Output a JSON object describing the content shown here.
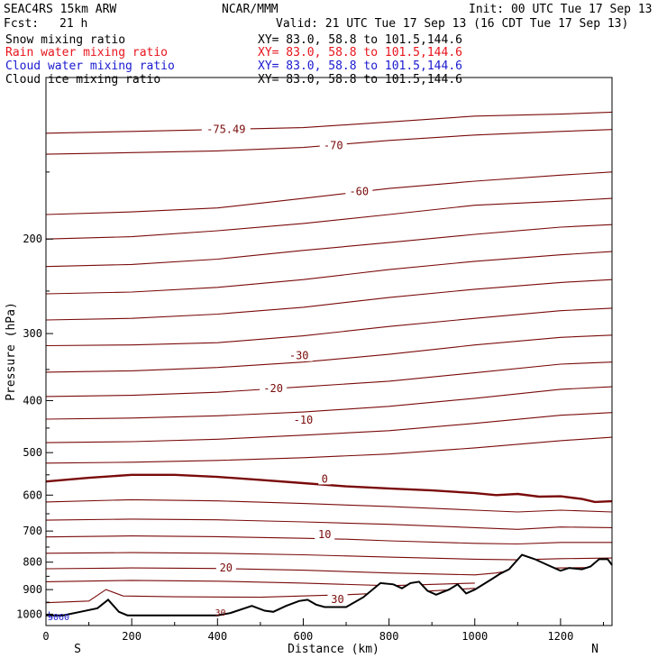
{
  "header": {
    "model": "SEAC4RS 15km ARW",
    "org": "NCAR/MMM",
    "init": "Init: 00 UTC Tue 17 Sep 13",
    "fcst_label": "Fcst:",
    "fcst_value": "21 h",
    "valid": "Valid: 21 UTC Tue 17 Sep 13 (16 CDT Tue 17 Sep 13)"
  },
  "legend": [
    {
      "label": "Snow mixing ratio",
      "xy": "XY=  83.0, 58.8 to 101.5,144.6",
      "color": "#000000"
    },
    {
      "label": "Rain water mixing ratio",
      "xy": "XY=  83.0, 58.8 to 101.5,144.6",
      "color": "#e8141c"
    },
    {
      "label": "Cloud water mixing ratio",
      "xy": "XY=  83.0, 58.8 to 101.5,144.6",
      "color": "#1a1ad0"
    },
    {
      "label": "Cloud ice mixing ratio",
      "xy": "XY=  83.0, 58.8 to 101.5,144.6",
      "color": "#000000"
    }
  ],
  "colors": {
    "temperature_contour": "#7a0a0a",
    "terrain": "#000000",
    "axes": "#000000"
  },
  "chart_data": {
    "type": "line",
    "title": "",
    "xlabel": "Distance (km)",
    "ylabel": "Pressure (hPa)",
    "xlim": [
      0,
      1320
    ],
    "ylim": [
      1050,
      100
    ],
    "y_scale": "log",
    "x_ticks": [
      0,
      200,
      400,
      600,
      800,
      1000,
      1200
    ],
    "y_ticks": [
      200,
      300,
      400,
      500,
      600,
      700,
      800,
      900,
      1000
    ],
    "x_end_labels": {
      "left": "S",
      "right": "N"
    },
    "temperature_contours": [
      {
        "level": "-75.49",
        "label_x": 420,
        "label_y": 125,
        "points": [
          [
            0,
            127
          ],
          [
            200,
            126
          ],
          [
            400,
            125
          ],
          [
            600,
            124
          ],
          [
            800,
            121
          ],
          [
            1000,
            118
          ],
          [
            1200,
            117
          ],
          [
            1320,
            116
          ]
        ]
      },
      {
        "level": "-70",
        "label_x": 670,
        "label_y": 134,
        "points": [
          [
            0,
            139
          ],
          [
            200,
            138
          ],
          [
            400,
            137
          ],
          [
            600,
            135
          ],
          [
            800,
            131
          ],
          [
            1000,
            128
          ],
          [
            1200,
            126
          ],
          [
            1320,
            125
          ]
        ]
      },
      {
        "level": "-60",
        "label_x": 730,
        "label_y": 163,
        "points": [
          [
            0,
            180
          ],
          [
            200,
            178
          ],
          [
            400,
            175
          ],
          [
            600,
            168
          ],
          [
            800,
            161
          ],
          [
            1000,
            156
          ],
          [
            1200,
            152
          ],
          [
            1320,
            150
          ]
        ]
      },
      {
        "level": "",
        "label_x": null,
        "label_y": null,
        "points": [
          [
            0,
            200
          ],
          [
            200,
            198
          ],
          [
            400,
            193
          ],
          [
            600,
            187
          ],
          [
            800,
            180
          ],
          [
            1000,
            173
          ],
          [
            1200,
            170
          ],
          [
            1320,
            168
          ]
        ]
      },
      {
        "level": "",
        "label_x": null,
        "label_y": null,
        "points": [
          [
            0,
            225
          ],
          [
            200,
            223
          ],
          [
            400,
            218
          ],
          [
            600,
            210
          ],
          [
            800,
            203
          ],
          [
            1000,
            196
          ],
          [
            1200,
            190
          ],
          [
            1320,
            188
          ]
        ]
      },
      {
        "level": "",
        "label_x": null,
        "label_y": null,
        "points": [
          [
            0,
            253
          ],
          [
            200,
            251
          ],
          [
            400,
            246
          ],
          [
            600,
            238
          ],
          [
            800,
            228
          ],
          [
            1000,
            220
          ],
          [
            1200,
            214
          ],
          [
            1320,
            211
          ]
        ]
      },
      {
        "level": "",
        "label_x": null,
        "label_y": null,
        "points": [
          [
            0,
            283
          ],
          [
            200,
            281
          ],
          [
            400,
            276
          ],
          [
            600,
            268
          ],
          [
            800,
            257
          ],
          [
            1000,
            248
          ],
          [
            1200,
            241
          ],
          [
            1320,
            238
          ]
        ]
      },
      {
        "level": "-30",
        "label_x": 590,
        "label_y": 330,
        "points": [
          [
            0,
            316
          ],
          [
            200,
            315
          ],
          [
            400,
            312
          ],
          [
            600,
            303
          ],
          [
            800,
            291
          ],
          [
            1000,
            281
          ],
          [
            1200,
            272
          ],
          [
            1320,
            269
          ]
        ]
      },
      {
        "level": "",
        "label_x": null,
        "label_y": null,
        "points": [
          [
            0,
            354
          ],
          [
            200,
            352
          ],
          [
            400,
            347
          ],
          [
            600,
            339
          ],
          [
            800,
            328
          ],
          [
            1000,
            315
          ],
          [
            1200,
            305
          ],
          [
            1320,
            302
          ]
        ]
      },
      {
        "level": "-20",
        "label_x": 530,
        "label_y": 380,
        "points": [
          [
            0,
            393
          ],
          [
            200,
            391
          ],
          [
            400,
            386
          ],
          [
            600,
            377
          ],
          [
            800,
            368
          ],
          [
            1000,
            355
          ],
          [
            1200,
            342
          ],
          [
            1320,
            339
          ]
        ]
      },
      {
        "level": "",
        "label_x": null,
        "label_y": null,
        "points": [
          [
            0,
            433
          ],
          [
            200,
            431
          ],
          [
            400,
            427
          ],
          [
            600,
            420
          ],
          [
            800,
            410
          ],
          [
            1000,
            396
          ],
          [
            1200,
            381
          ],
          [
            1320,
            377
          ]
        ]
      },
      {
        "level": "-10",
        "label_x": 600,
        "label_y": 435,
        "points": [
          [
            0,
            479
          ],
          [
            200,
            477
          ],
          [
            400,
            472
          ],
          [
            600,
            464
          ],
          [
            800,
            455
          ],
          [
            1000,
            441
          ],
          [
            1200,
            426
          ],
          [
            1320,
            421
          ]
        ]
      },
      {
        "level": "",
        "label_x": null,
        "label_y": null,
        "points": [
          [
            0,
            523
          ],
          [
            200,
            521
          ],
          [
            400,
            517
          ],
          [
            600,
            511
          ],
          [
            800,
            503
          ],
          [
            1000,
            490
          ],
          [
            1200,
            475
          ],
          [
            1320,
            468
          ]
        ]
      },
      {
        "level": "0",
        "label_x": 650,
        "label_y": 560,
        "bold": true,
        "points": [
          [
            0,
            566
          ],
          [
            100,
            557
          ],
          [
            200,
            550
          ],
          [
            300,
            550
          ],
          [
            400,
            555
          ],
          [
            500,
            562
          ],
          [
            600,
            570
          ],
          [
            700,
            578
          ],
          [
            800,
            583
          ],
          [
            900,
            588
          ],
          [
            1000,
            595
          ],
          [
            1050,
            600
          ],
          [
            1100,
            597
          ],
          [
            1150,
            604
          ],
          [
            1200,
            603
          ],
          [
            1250,
            610
          ],
          [
            1280,
            618
          ],
          [
            1320,
            616
          ]
        ]
      },
      {
        "level": "",
        "label_x": null,
        "label_y": null,
        "points": [
          [
            0,
            618
          ],
          [
            200,
            612
          ],
          [
            400,
            615
          ],
          [
            600,
            622
          ],
          [
            800,
            630
          ],
          [
            1000,
            640
          ],
          [
            1100,
            645
          ],
          [
            1200,
            640
          ],
          [
            1320,
            645
          ]
        ]
      },
      {
        "level": "",
        "label_x": null,
        "label_y": null,
        "points": [
          [
            0,
            668
          ],
          [
            200,
            665
          ],
          [
            400,
            667
          ],
          [
            600,
            673
          ],
          [
            800,
            680
          ],
          [
            1000,
            690
          ],
          [
            1100,
            695
          ],
          [
            1200,
            688
          ],
          [
            1320,
            690
          ]
        ]
      },
      {
        "level": "10",
        "label_x": 650,
        "label_y": 710,
        "points": [
          [
            0,
            718
          ],
          [
            200,
            715
          ],
          [
            400,
            717
          ],
          [
            600,
            722
          ],
          [
            700,
            725
          ],
          [
            800,
            730
          ],
          [
            1000,
            738
          ],
          [
            1100,
            740
          ],
          [
            1200,
            735
          ],
          [
            1320,
            735
          ]
        ]
      },
      {
        "level": "",
        "label_x": null,
        "label_y": null,
        "points": [
          [
            0,
            770
          ],
          [
            200,
            768
          ],
          [
            400,
            770
          ],
          [
            600,
            775
          ],
          [
            800,
            783
          ],
          [
            1000,
            790
          ],
          [
            1100,
            792
          ],
          [
            1200,
            788
          ],
          [
            1320,
            786
          ]
        ]
      },
      {
        "level": "20",
        "label_x": 420,
        "label_y": 820,
        "points": [
          [
            0,
            823
          ],
          [
            200,
            820
          ],
          [
            400,
            822
          ],
          [
            600,
            828
          ],
          [
            800,
            838
          ],
          [
            1000,
            845
          ],
          [
            1050,
            838
          ],
          [
            1100,
            825
          ],
          [
            1200,
            820
          ],
          [
            1320,
            818
          ]
        ]
      },
      {
        "level": "",
        "label_x": null,
        "label_y": null,
        "points": [
          [
            0,
            870
          ],
          [
            200,
            865
          ],
          [
            400,
            868
          ],
          [
            600,
            875
          ],
          [
            800,
            885
          ],
          [
            1000,
            875
          ]
        ]
      },
      {
        "level": "30",
        "label_x": 680,
        "label_y": 938,
        "points": [
          [
            0,
            952
          ],
          [
            100,
            945
          ],
          [
            140,
            900
          ],
          [
            180,
            925
          ],
          [
            300,
            928
          ],
          [
            500,
            930
          ],
          [
            700,
            920
          ],
          [
            900,
            905
          ],
          [
            1000,
            895
          ]
        ]
      }
    ],
    "terrain": {
      "units": "hPa",
      "points": [
        [
          0,
          1005
        ],
        [
          40,
          1005
        ],
        [
          80,
          990
        ],
        [
          120,
          975
        ],
        [
          145,
          940
        ],
        [
          170,
          990
        ],
        [
          190,
          1005
        ],
        [
          400,
          1005
        ],
        [
          430,
          995
        ],
        [
          480,
          965
        ],
        [
          510,
          985
        ],
        [
          530,
          990
        ],
        [
          560,
          965
        ],
        [
          590,
          945
        ],
        [
          610,
          940
        ],
        [
          630,
          960
        ],
        [
          650,
          970
        ],
        [
          700,
          970
        ],
        [
          740,
          930
        ],
        [
          780,
          875
        ],
        [
          810,
          880
        ],
        [
          830,
          895
        ],
        [
          850,
          875
        ],
        [
          870,
          870
        ],
        [
          890,
          905
        ],
        [
          910,
          920
        ],
        [
          940,
          900
        ],
        [
          960,
          880
        ],
        [
          980,
          915
        ],
        [
          1000,
          900
        ],
        [
          1040,
          860
        ],
        [
          1060,
          840
        ],
        [
          1080,
          825
        ],
        [
          1110,
          775
        ],
        [
          1140,
          790
        ],
        [
          1170,
          810
        ],
        [
          1200,
          830
        ],
        [
          1220,
          820
        ],
        [
          1250,
          825
        ],
        [
          1270,
          815
        ],
        [
          1290,
          790
        ],
        [
          1310,
          790
        ],
        [
          1320,
          810
        ]
      ]
    },
    "small_labels": [
      {
        "text": "L",
        "x": 0,
        "p": 1000,
        "color": "#1a1ad0"
      },
      {
        "text": "5060",
        "x": 0,
        "p": 1010,
        "color": "#1a1ad0"
      },
      {
        "text": "30",
        "x": 390,
        "p": 990,
        "color": "#7a0a0a"
      }
    ]
  }
}
